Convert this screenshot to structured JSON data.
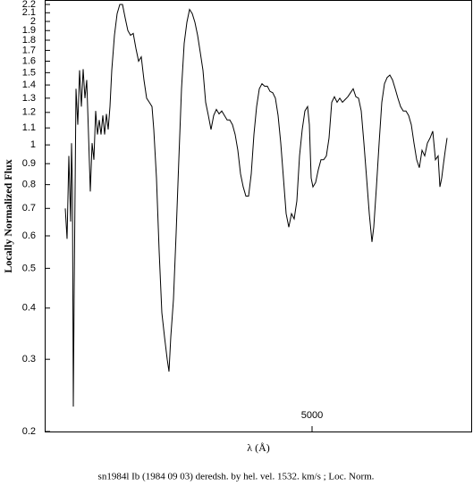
{
  "chart_data": {
    "type": "line",
    "ylabel": "Locally Normalized Flux",
    "xlabel": "λ (Å)",
    "caption": "sn1984l Ib (1984 09 03) deredsh. by hel. vel.  1532. km/s ;  Loc. Norm.",
    "xlim": [
      3505,
      5895
    ],
    "xticks": [
      5000
    ],
    "ylim": [
      0.2,
      2.2
    ],
    "ylog": true,
    "yticks": [
      0.2,
      0.3,
      0.4,
      0.5,
      0.6,
      0.7,
      0.8,
      0.9,
      1,
      1.1,
      1.2,
      1.3,
      1.4,
      1.5,
      1.6,
      1.7,
      1.8,
      1.9,
      2,
      2.1,
      2.2
    ],
    "color": "#000000",
    "x": [
      3620,
      3630,
      3640,
      3650,
      3655,
      3660,
      3665,
      3670,
      3680,
      3690,
      3700,
      3710,
      3720,
      3730,
      3740,
      3750,
      3760,
      3770,
      3780,
      3790,
      3800,
      3810,
      3820,
      3830,
      3840,
      3850,
      3860,
      3870,
      3880,
      3895,
      3910,
      3925,
      3940,
      3955,
      3970,
      3985,
      4000,
      4015,
      4030,
      4045,
      4060,
      4075,
      4090,
      4105,
      4115,
      4130,
      4145,
      4160,
      4175,
      4190,
      4200,
      4210,
      4225,
      4240,
      4255,
      4270,
      4285,
      4300,
      4315,
      4330,
      4345,
      4360,
      4375,
      4390,
      4405,
      4420,
      4435,
      4450,
      4465,
      4480,
      4495,
      4510,
      4525,
      4540,
      4555,
      4570,
      4585,
      4600,
      4615,
      4630,
      4645,
      4660,
      4675,
      4690,
      4705,
      4720,
      4735,
      4750,
      4765,
      4780,
      4795,
      4810,
      4825,
      4840,
      4855,
      4870,
      4885,
      4900,
      4915,
      4930,
      4945,
      4960,
      4975,
      4985,
      4995,
      5005,
      5020,
      5035,
      5050,
      5065,
      5080,
      5095,
      5110,
      5125,
      5140,
      5155,
      5170,
      5185,
      5200,
      5215,
      5230,
      5245,
      5260,
      5275,
      5290,
      5305,
      5320,
      5335,
      5345,
      5360,
      5375,
      5390,
      5405,
      5420,
      5435,
      5450,
      5465,
      5480,
      5495,
      5510,
      5525,
      5540,
      5555,
      5570,
      5585,
      5600,
      5615,
      5630,
      5645,
      5660,
      5675,
      5690,
      5705,
      5715,
      5725,
      5735,
      5745,
      5755
    ],
    "values": [
      0.7,
      0.59,
      0.94,
      0.65,
      1.01,
      0.79,
      0.23,
      0.45,
      1.37,
      1.12,
      1.52,
      1.24,
      1.53,
      1.3,
      1.44,
      1.06,
      0.77,
      1.01,
      0.92,
      1.21,
      1.06,
      1.15,
      1.06,
      1.18,
      1.06,
      1.19,
      1.09,
      1.24,
      1.52,
      1.85,
      2.09,
      2.2,
      2.2,
      2.04,
      1.9,
      1.85,
      1.87,
      1.72,
      1.6,
      1.64,
      1.44,
      1.3,
      1.27,
      1.24,
      1.09,
      0.83,
      0.55,
      0.39,
      0.34,
      0.3,
      0.28,
      0.34,
      0.42,
      0.61,
      0.92,
      1.37,
      1.77,
      1.99,
      2.14,
      2.09,
      1.99,
      1.85,
      1.68,
      1.52,
      1.27,
      1.18,
      1.09,
      1.18,
      1.22,
      1.19,
      1.21,
      1.18,
      1.15,
      1.15,
      1.12,
      1.06,
      0.97,
      0.85,
      0.79,
      0.75,
      0.75,
      0.85,
      1.06,
      1.24,
      1.37,
      1.41,
      1.39,
      1.39,
      1.35,
      1.34,
      1.3,
      1.18,
      1.01,
      0.83,
      0.68,
      0.63,
      0.68,
      0.66,
      0.73,
      0.94,
      1.09,
      1.21,
      1.24,
      1.12,
      0.83,
      0.79,
      0.81,
      0.87,
      0.92,
      0.92,
      0.94,
      1.04,
      1.27,
      1.31,
      1.27,
      1.3,
      1.27,
      1.29,
      1.31,
      1.34,
      1.37,
      1.31,
      1.3,
      1.21,
      1.01,
      0.83,
      0.68,
      0.58,
      0.63,
      0.79,
      1.01,
      1.27,
      1.41,
      1.46,
      1.48,
      1.44,
      1.37,
      1.3,
      1.24,
      1.21,
      1.21,
      1.18,
      1.12,
      1.01,
      0.92,
      0.88,
      0.97,
      0.94,
      1.01,
      1.04,
      1.08,
      0.92,
      0.94,
      0.79,
      0.83,
      0.9,
      0.97,
      1.04
    ]
  }
}
